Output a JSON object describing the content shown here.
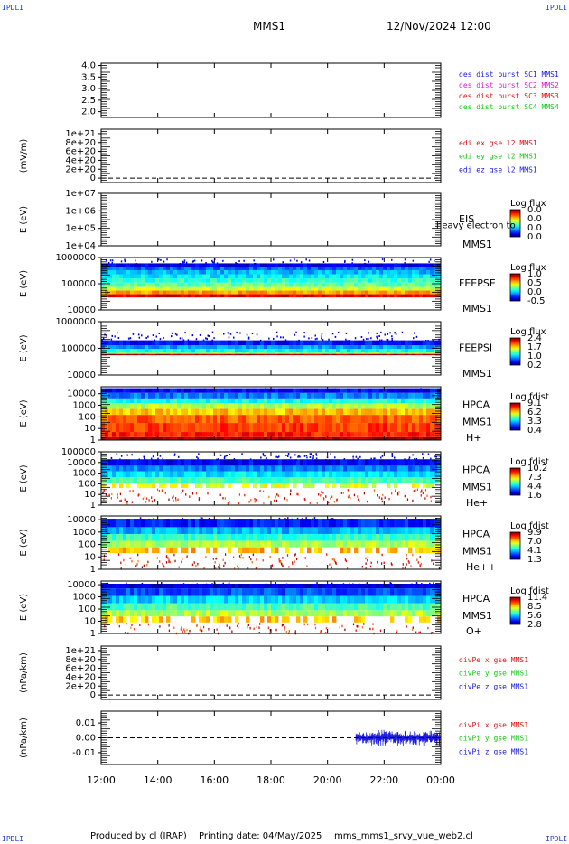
{
  "corner_label": "IPDLI",
  "header": {
    "spacecraft": "MMS1",
    "date_time": "12/Nov/2024 12:00"
  },
  "footer": {
    "produced_by": "Produced by cl (IRAP)",
    "printing_date": "Printing date: 04/May/2025",
    "script": "mms_mms1_srvy_vue_web2.cl"
  },
  "x_axis": {
    "ticks": [
      "12:00",
      "14:00",
      "16:00",
      "18:00",
      "20:00",
      "22:00",
      "00:00"
    ]
  },
  "colors": {
    "blue": "#1a1adc",
    "magenta": "#d21ed2",
    "red": "#dc1414",
    "green": "#14c814"
  },
  "chart_data": [
    {
      "type": "line",
      "title": "",
      "ylabel": "",
      "yticks": [
        "4.0",
        "3.5",
        "3.0",
        "2.5",
        "2.0"
      ],
      "ylim": [
        1.75,
        4.1
      ],
      "legend": [
        {
          "text": "des dist burst SC1 MMS1",
          "color": "#1a1adc"
        },
        {
          "text": "des dist burst SC2 MMS2",
          "color": "#d21ed2"
        },
        {
          "text": "des dist burst SC3 MMS3",
          "color": "#dc1414"
        },
        {
          "text": "des dist burst SC4 MMS4",
          "color": "#14c814"
        }
      ],
      "series": []
    },
    {
      "type": "line",
      "title": "",
      "ylabel": "(mV/m)",
      "yticks": [
        "1e+21",
        "8e+20",
        "6e+20",
        "4e+20",
        "2e+20",
        "0"
      ],
      "ylim": [
        -1e+20,
        1.1e+21
      ],
      "zero_line": true,
      "legend": [
        {
          "text": "edi ex gse l2 MMS1",
          "color": "#dc1414"
        },
        {
          "text": "edi ey gse l2 MMS1",
          "color": "#14c814"
        },
        {
          "text": "edi ez gse l2 MMS1",
          "color": "#1a1adc"
        }
      ],
      "series": []
    },
    {
      "type": "heatmap",
      "title": "",
      "ylabel": "E (eV)",
      "yscale": "log",
      "yticks": [
        "1e+07",
        "1e+06",
        "1e+05",
        "1e+04"
      ],
      "ylim": [
        10000,
        10000000
      ],
      "instrument": [
        "EIS",
        "MMS1"
      ],
      "overlay_text": "heavy electron to",
      "colorbar": {
        "title": "Log flux",
        "labels": [
          "0.0",
          "0.0",
          "0.0",
          "0.0"
        ]
      },
      "bands": []
    },
    {
      "type": "heatmap",
      "title": "",
      "ylabel": "E (eV)",
      "yscale": "log",
      "yticks": [
        "1000000",
        "100000",
        "10000"
      ],
      "ylim": [
        10000,
        1000000
      ],
      "instrument": [
        "FEEPSE",
        "MMS1"
      ],
      "colorbar": {
        "title": "Log flux",
        "labels": [
          "1.0",
          "0.5",
          "0.0",
          "-0.5"
        ]
      },
      "bands": [
        {
          "e_low": 30000,
          "e_high": 40000,
          "level": 0.9
        },
        {
          "e_low": 40000,
          "e_high": 55000,
          "level": 0.72
        },
        {
          "e_low": 55000,
          "e_high": 75000,
          "level": 0.58
        },
        {
          "e_low": 75000,
          "e_high": 110000,
          "level": 0.48
        },
        {
          "e_low": 110000,
          "e_high": 160000,
          "level": 0.42
        },
        {
          "e_low": 160000,
          "e_high": 230000,
          "level": 0.36
        },
        {
          "e_low": 230000,
          "e_high": 330000,
          "level": 0.3
        },
        {
          "e_low": 330000,
          "e_high": 450000,
          "level": 0.22
        },
        {
          "e_low": 450000,
          "e_high": 600000,
          "level": 0.1
        }
      ]
    },
    {
      "type": "heatmap",
      "title": "",
      "ylabel": "E (eV)",
      "yscale": "log",
      "yticks": [
        "1000000",
        "100000",
        "10000"
      ],
      "ylim": [
        10000,
        1000000
      ],
      "instrument": [
        "FEEPSI",
        "MMS1"
      ],
      "colorbar": {
        "title": "Log flux",
        "labels": [
          "2.4",
          "1.7",
          "1.0",
          "0.2"
        ]
      },
      "bands": [
        {
          "e_low": 55000,
          "e_high": 62000,
          "level": 0.95
        },
        {
          "e_low": 62000,
          "e_high": 75000,
          "level": 0.5
        },
        {
          "e_low": 75000,
          "e_high": 95000,
          "level": 0.38
        },
        {
          "e_low": 95000,
          "e_high": 130000,
          "level": 0.28
        },
        {
          "e_low": 130000,
          "e_high": 200000,
          "level": 0.14
        }
      ]
    },
    {
      "type": "heatmap",
      "title": "",
      "ylabel": "E (eV)",
      "yscale": "log",
      "yticks": [
        "10000",
        "1000",
        "100",
        "10",
        "1"
      ],
      "ylim": [
        1,
        40000
      ],
      "instrument": [
        "HPCA",
        "MMS1",
        "H+"
      ],
      "colorbar": {
        "title": "Log fdist",
        "labels": [
          "9.1",
          "6.2",
          "3.3",
          "0.4"
        ]
      },
      "bands": [
        {
          "e_low": 1,
          "e_high": 1.8,
          "level": 0.97
        },
        {
          "e_low": 1.8,
          "e_high": 5,
          "level": 0.85
        },
        {
          "e_low": 5,
          "e_high": 30,
          "level": 0.82
        },
        {
          "e_low": 30,
          "e_high": 150,
          "level": 0.78
        },
        {
          "e_low": 150,
          "e_high": 500,
          "level": 0.68
        },
        {
          "e_low": 500,
          "e_high": 1500,
          "level": 0.55
        },
        {
          "e_low": 1500,
          "e_high": 4000,
          "level": 0.4
        },
        {
          "e_low": 4000,
          "e_high": 12000,
          "level": 0.25
        },
        {
          "e_low": 12000,
          "e_high": 30000,
          "level": 0.12
        }
      ]
    },
    {
      "type": "heatmap",
      "title": "",
      "ylabel": "E (eV)",
      "yscale": "log",
      "yticks": [
        "100000",
        "10000",
        "1000",
        "100",
        "10",
        "1"
      ],
      "ylim": [
        1,
        100000
      ],
      "instrument": [
        "HPCA",
        "MMS1",
        "He+"
      ],
      "colorbar": {
        "title": "Log fdist",
        "labels": [
          "10.2",
          "7.3",
          "4.4",
          "1.6"
        ]
      },
      "bands": [
        {
          "e_low": 40,
          "e_high": 120,
          "level": 0.6
        },
        {
          "e_low": 120,
          "e_high": 400,
          "level": 0.45
        },
        {
          "e_low": 400,
          "e_high": 1500,
          "level": 0.35
        },
        {
          "e_low": 1500,
          "e_high": 5000,
          "level": 0.25
        },
        {
          "e_low": 5000,
          "e_high": 20000,
          "level": 0.12
        }
      ]
    },
    {
      "type": "heatmap",
      "title": "",
      "ylabel": "E (eV)",
      "yscale": "log",
      "yticks": [
        "10000",
        "1000",
        "100",
        "10",
        "1"
      ],
      "ylim": [
        1,
        20000
      ],
      "instrument": [
        "HPCA",
        "MMS1",
        "He++"
      ],
      "colorbar": {
        "title": "Log fdist",
        "labels": [
          "9.9",
          "7.0",
          "4.1",
          "1.3"
        ]
      },
      "bands": [
        {
          "e_low": 20,
          "e_high": 60,
          "level": 0.7
        },
        {
          "e_low": 60,
          "e_high": 200,
          "level": 0.55
        },
        {
          "e_low": 200,
          "e_high": 700,
          "level": 0.42
        },
        {
          "e_low": 700,
          "e_high": 2500,
          "level": 0.3
        },
        {
          "e_low": 2500,
          "e_high": 12000,
          "level": 0.15
        }
      ]
    },
    {
      "type": "heatmap",
      "title": "",
      "ylabel": "E (eV)",
      "yscale": "log",
      "yticks": [
        "10000",
        "1000",
        "100",
        "10",
        "1"
      ],
      "ylim": [
        1,
        20000
      ],
      "instrument": [
        "HPCA",
        "MMS1",
        "O+"
      ],
      "colorbar": {
        "title": "Log fdist",
        "labels": [
          "11.4",
          "8.5",
          "5.6",
          "2.8"
        ]
      },
      "bands": [
        {
          "e_low": 8,
          "e_high": 25,
          "level": 0.68
        },
        {
          "e_low": 25,
          "e_high": 80,
          "level": 0.55
        },
        {
          "e_low": 80,
          "e_high": 300,
          "level": 0.45
        },
        {
          "e_low": 300,
          "e_high": 1200,
          "level": 0.33
        },
        {
          "e_low": 1200,
          "e_high": 5000,
          "level": 0.2
        },
        {
          "e_low": 5000,
          "e_high": 12000,
          "level": 0.08
        }
      ]
    },
    {
      "type": "line",
      "title": "",
      "ylabel": "(nPa/km)",
      "yticks": [
        "1e+21",
        "8e+20",
        "6e+20",
        "4e+20",
        "2e+20",
        "0"
      ],
      "ylim": [
        -1e+20,
        1.1e+21
      ],
      "zero_line": true,
      "legend": [
        {
          "text": "divPe x gse MMS1",
          "color": "#dc1414"
        },
        {
          "text": "divPe y gse MMS1",
          "color": "#14c814"
        },
        {
          "text": "divPe z gse MMS1",
          "color": "#1a1adc"
        }
      ],
      "series": []
    },
    {
      "type": "line",
      "title": "",
      "ylabel": "(nPa/km)",
      "yticks": [
        "0.01",
        "0.00",
        "-0.01"
      ],
      "ylim": [
        -0.018,
        0.018
      ],
      "zero_line": true,
      "legend": [
        {
          "text": "divPi x gse MMS1",
          "color": "#dc1414"
        },
        {
          "text": "divPi y gse MMS1",
          "color": "#14c814"
        },
        {
          "text": "divPi z gse MMS1",
          "color": "#1a1adc"
        }
      ],
      "series": [
        {
          "color": "#1a1adc",
          "t_start": 21.0,
          "t_end": 24.0,
          "amplitude": 0.006
        }
      ]
    }
  ]
}
